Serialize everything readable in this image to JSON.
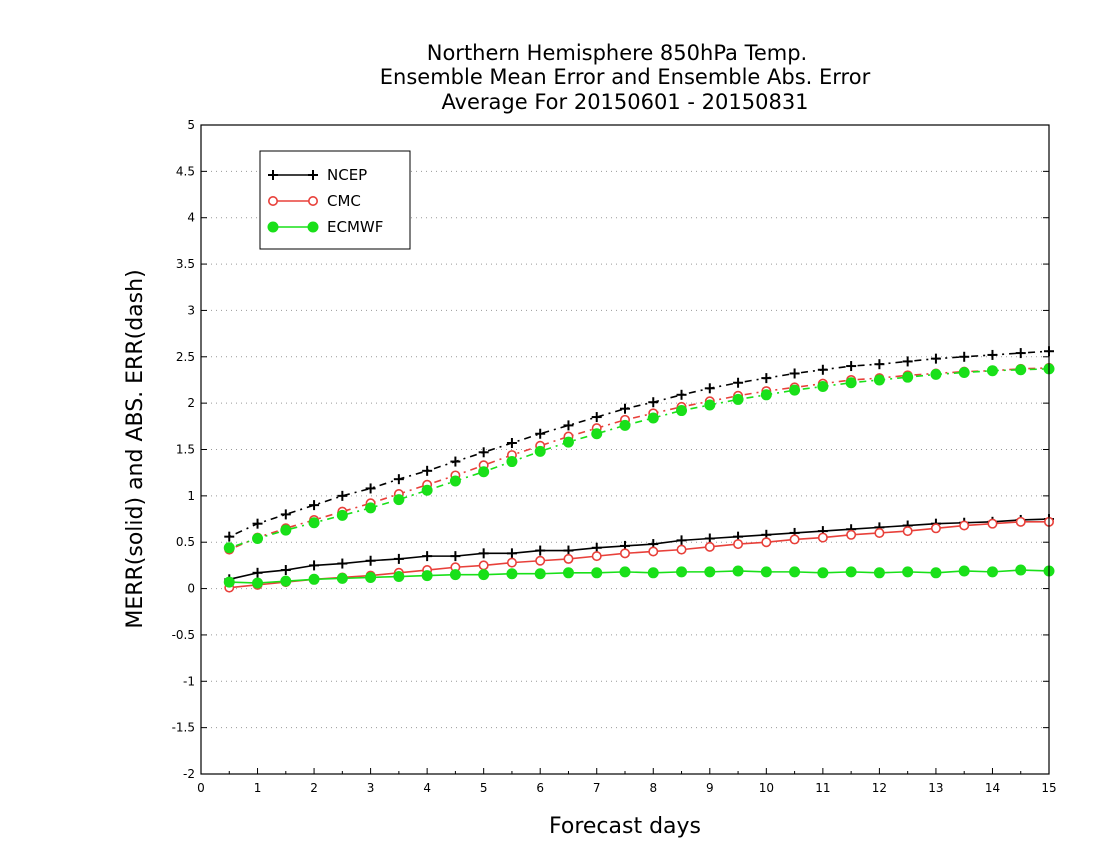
{
  "chart_data": {
    "type": "line",
    "title_lines": [
      "Northern Hemisphere 850hPa Temp.",
      "Ensemble Mean Error and Ensemble Abs. Error",
      "Average For 20150601 - 20150831"
    ],
    "xlabel": "Forecast days",
    "ylabel": "MERR(solid) and ABS. ERR(dash)",
    "xlim": [
      0,
      15
    ],
    "ylim": [
      -2,
      5
    ],
    "x_ticks": [
      0,
      1,
      2,
      3,
      4,
      5,
      6,
      7,
      8,
      9,
      10,
      11,
      12,
      13,
      14,
      15
    ],
    "y_ticks": [
      -2,
      -1.5,
      -1,
      -0.5,
      0,
      0.5,
      1,
      1.5,
      2,
      2.5,
      3,
      3.5,
      4,
      4.5,
      5
    ],
    "grid": "horizontal-dotted",
    "legend_position": "top-left",
    "x": [
      0.5,
      1,
      1.5,
      2,
      2.5,
      3,
      3.5,
      4,
      4.5,
      5,
      5.5,
      6,
      6.5,
      7,
      7.5,
      8,
      8.5,
      9,
      9.5,
      10,
      10.5,
      11,
      11.5,
      12,
      12.5,
      13,
      13.5,
      14,
      14.5,
      15
    ],
    "series": [
      {
        "name": "NCEP",
        "color": "#000000",
        "marker": "plus",
        "merr": [
          0.1,
          0.17,
          0.2,
          0.25,
          0.27,
          0.3,
          0.32,
          0.35,
          0.35,
          0.38,
          0.38,
          0.41,
          0.41,
          0.44,
          0.46,
          0.48,
          0.52,
          0.54,
          0.56,
          0.58,
          0.6,
          0.62,
          0.64,
          0.66,
          0.68,
          0.7,
          0.71,
          0.72,
          0.74,
          0.75
        ],
        "abs_err": [
          0.56,
          0.7,
          0.8,
          0.9,
          1.0,
          1.08,
          1.18,
          1.27,
          1.37,
          1.47,
          1.57,
          1.67,
          1.76,
          1.85,
          1.94,
          2.01,
          2.09,
          2.16,
          2.22,
          2.27,
          2.32,
          2.36,
          2.4,
          2.42,
          2.45,
          2.48,
          2.5,
          2.52,
          2.54,
          2.56
        ]
      },
      {
        "name": "CMC",
        "color": "#e8403a",
        "marker": "open-circle",
        "merr": [
          0.01,
          0.04,
          0.07,
          0.1,
          0.12,
          0.14,
          0.17,
          0.2,
          0.23,
          0.25,
          0.28,
          0.3,
          0.32,
          0.35,
          0.38,
          0.4,
          0.42,
          0.45,
          0.48,
          0.5,
          0.53,
          0.55,
          0.58,
          0.6,
          0.62,
          0.65,
          0.68,
          0.7,
          0.72,
          0.72
        ],
        "abs_err": [
          0.42,
          0.55,
          0.65,
          0.74,
          0.83,
          0.92,
          1.02,
          1.12,
          1.22,
          1.33,
          1.44,
          1.54,
          1.64,
          1.73,
          1.82,
          1.89,
          1.96,
          2.02,
          2.08,
          2.13,
          2.17,
          2.21,
          2.25,
          2.27,
          2.3,
          2.32,
          2.34,
          2.35,
          2.37,
          2.38
        ]
      },
      {
        "name": "ECMWF",
        "color": "#19e019",
        "marker": "filled-circle",
        "merr": [
          0.07,
          0.06,
          0.08,
          0.1,
          0.11,
          0.12,
          0.13,
          0.14,
          0.15,
          0.15,
          0.16,
          0.16,
          0.17,
          0.17,
          0.18,
          0.17,
          0.18,
          0.18,
          0.19,
          0.18,
          0.18,
          0.17,
          0.18,
          0.17,
          0.18,
          0.17,
          0.19,
          0.18,
          0.2,
          0.19
        ],
        "abs_err": [
          0.44,
          0.54,
          0.63,
          0.71,
          0.79,
          0.87,
          0.96,
          1.06,
          1.16,
          1.26,
          1.37,
          1.48,
          1.58,
          1.67,
          1.76,
          1.84,
          1.92,
          1.98,
          2.04,
          2.09,
          2.14,
          2.18,
          2.22,
          2.25,
          2.28,
          2.31,
          2.33,
          2.35,
          2.36,
          2.37
        ]
      }
    ]
  }
}
